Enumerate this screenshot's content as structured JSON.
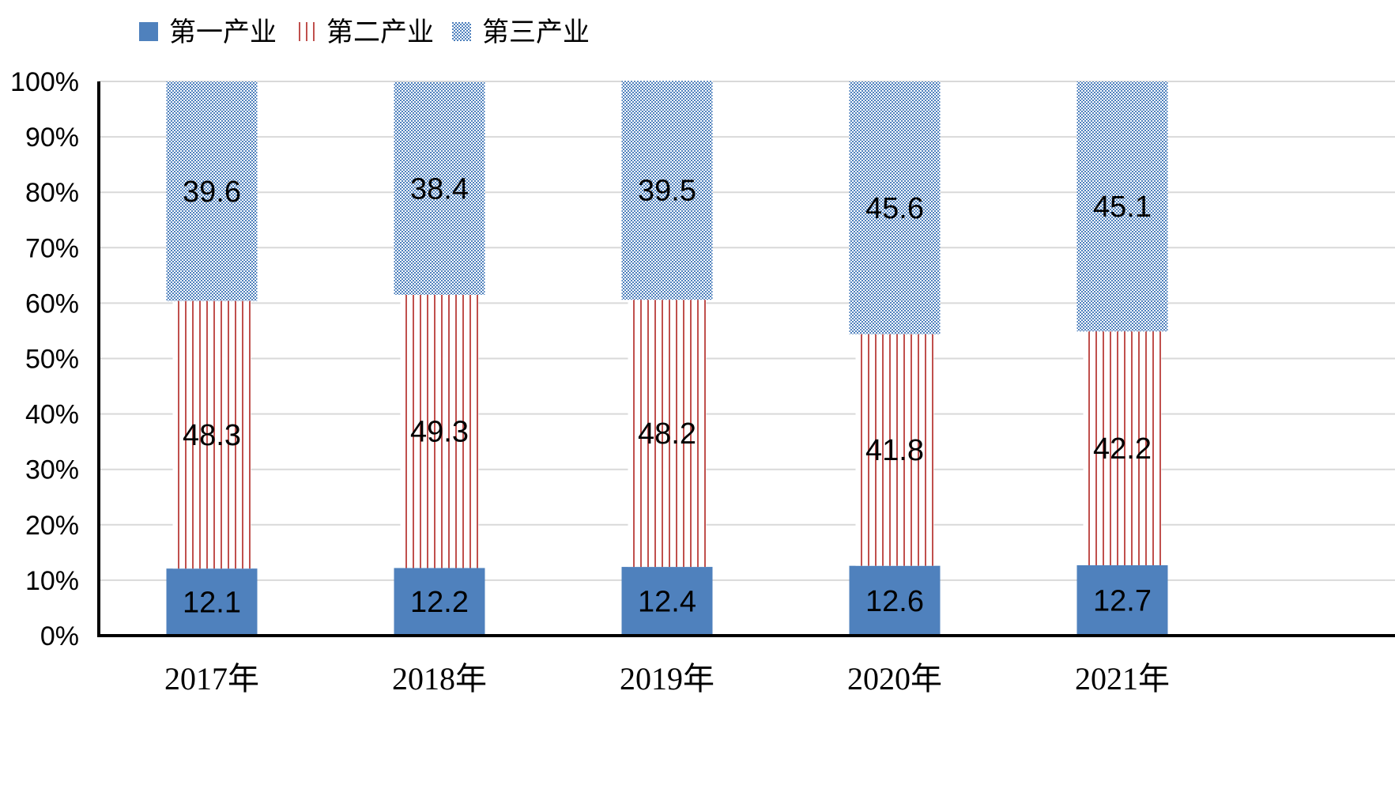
{
  "chart_data": {
    "type": "bar",
    "stacked": true,
    "percent_stacked": true,
    "categories": [
      "2017年",
      "2018年",
      "2019年",
      "2020年",
      "2021年"
    ],
    "series": [
      {
        "name": "第一产业",
        "values": [
          12.1,
          12.2,
          12.4,
          12.6,
          12.7
        ],
        "color": "#4F81BD",
        "pattern": "solid"
      },
      {
        "name": "第二产业",
        "values": [
          48.3,
          49.3,
          48.2,
          41.8,
          42.2
        ],
        "color": "#C0504D",
        "pattern": "vertical-lines"
      },
      {
        "name": "第三产业",
        "values": [
          39.6,
          38.4,
          39.5,
          45.6,
          45.1
        ],
        "color": "#4F81BD",
        "pattern": "dots"
      }
    ],
    "yticks": [
      "0%",
      "10%",
      "20%",
      "30%",
      "40%",
      "50%",
      "60%",
      "70%",
      "80%",
      "90%",
      "100%"
    ],
    "ylim": [
      0,
      100
    ],
    "grid": true,
    "legend_position": "top-left",
    "title": "",
    "xlabel": "",
    "ylabel": ""
  }
}
